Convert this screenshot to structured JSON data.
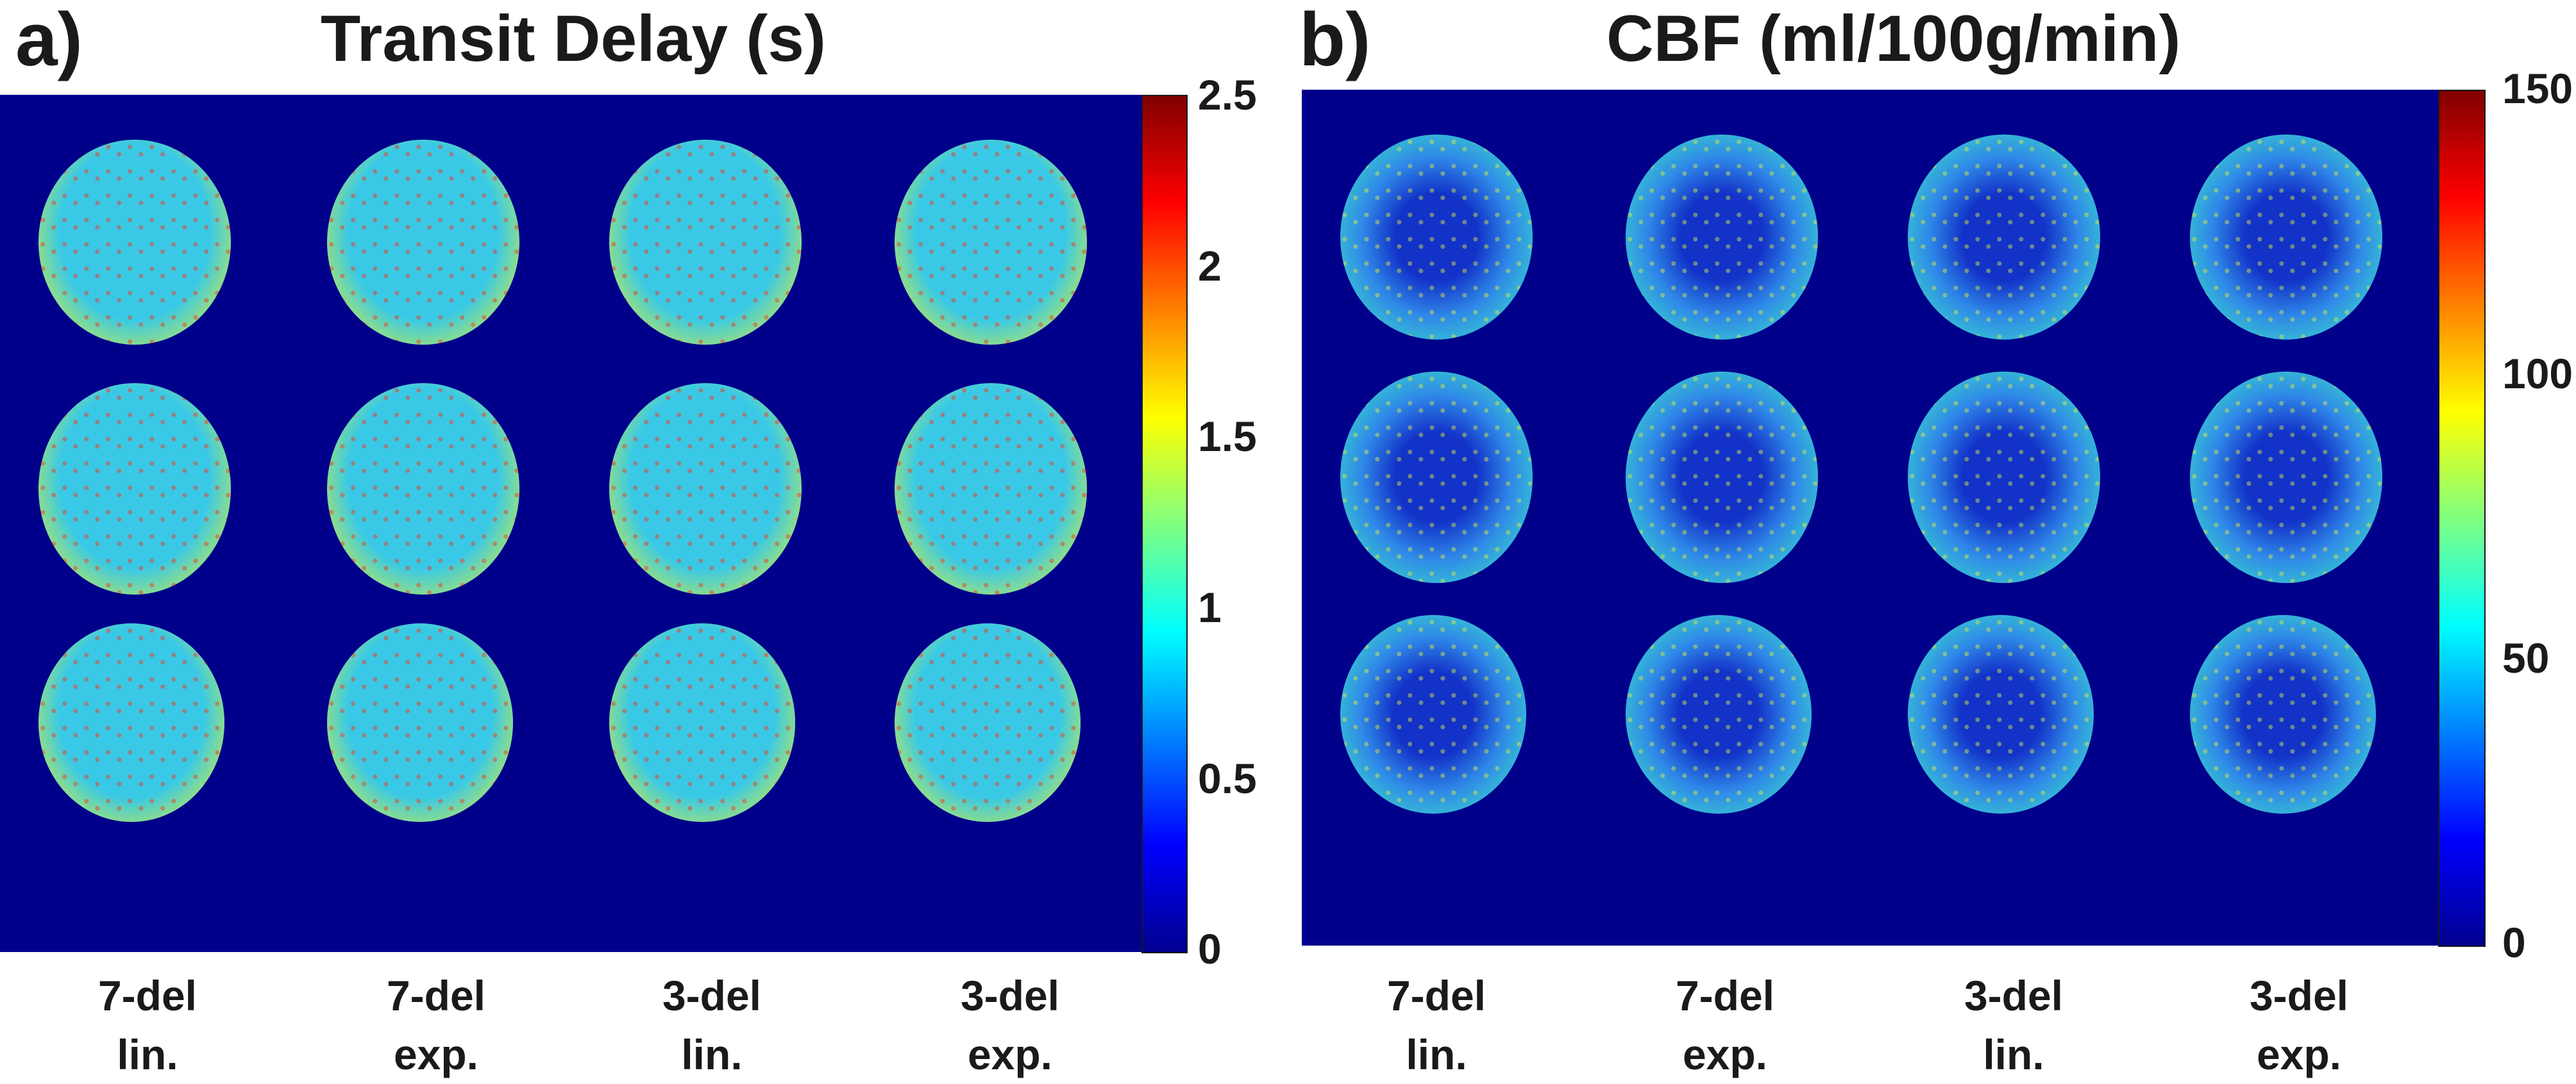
{
  "panel_a": {
    "letter": "a)",
    "title": "Transit Delay (s)",
    "colorbar_ticks": [
      "2.5",
      "2",
      "1.5",
      "1",
      "0.5",
      "0"
    ],
    "columns": [
      {
        "line1": "7-del",
        "line2": "lin."
      },
      {
        "line1": "7-del",
        "line2": "exp."
      },
      {
        "line1": "3-del",
        "line2": "lin."
      },
      {
        "line1": "3-del",
        "line2": "exp."
      }
    ]
  },
  "panel_b": {
    "letter": "b)",
    "title": "CBF (ml/100g/min)",
    "colorbar_ticks": [
      "150",
      "100",
      "50",
      "0"
    ],
    "columns": [
      {
        "line1": "7-del",
        "line2": "lin."
      },
      {
        "line1": "7-del",
        "line2": "exp."
      },
      {
        "line1": "3-del",
        "line2": "lin."
      },
      {
        "line1": "3-del",
        "line2": "exp."
      }
    ]
  },
  "colors": {
    "map_background": "#00008b",
    "td_brain_base": "#39c9e6",
    "td_brain_hot": "#d9ee3a",
    "cbf_brain_base": "#2f88e8",
    "cbf_brain_wm": "#1232c8",
    "cbf_brain_gm": "#39d9c9"
  }
}
